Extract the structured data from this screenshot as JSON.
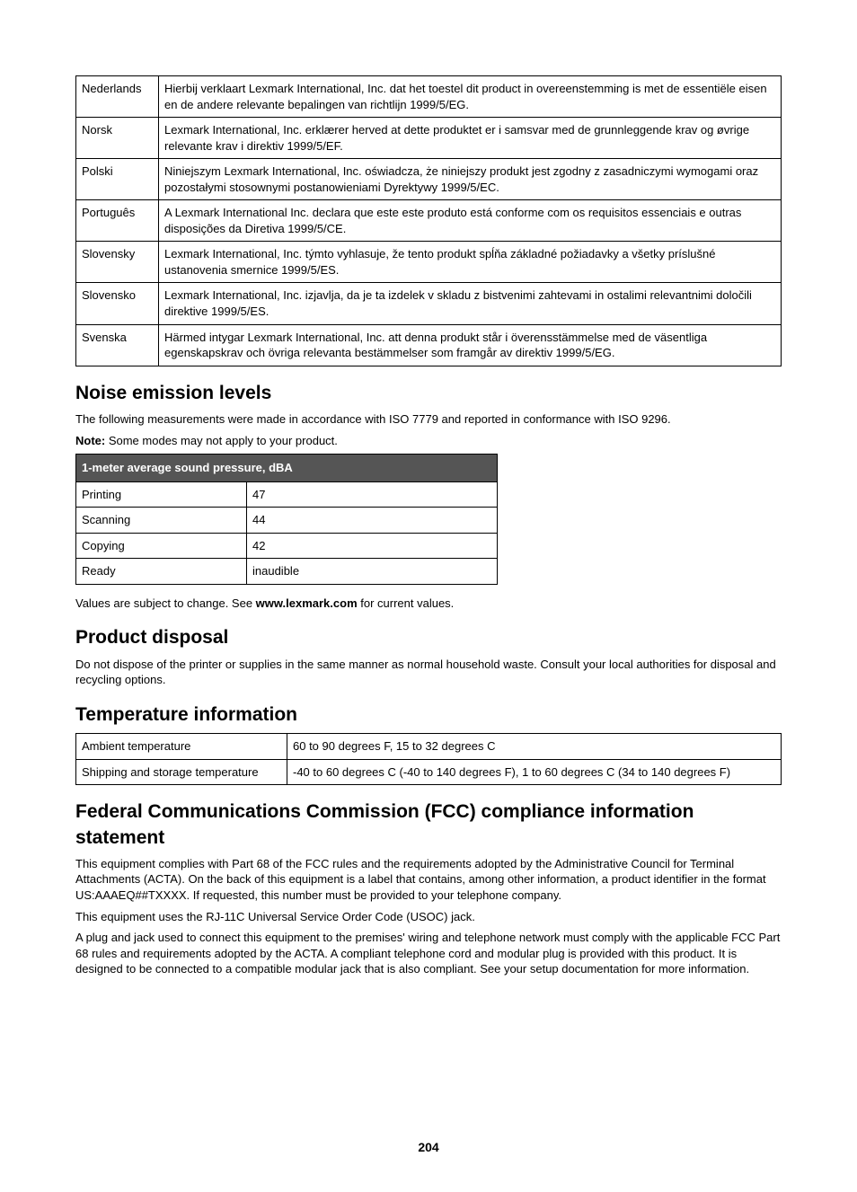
{
  "langTable": [
    {
      "lang": "Nederlands",
      "text": "Hierbij verklaart Lexmark International, Inc. dat het toestel dit product in overeenstemming is met de essentiële eisen en de andere relevante bepalingen van richtlijn 1999/5/EG."
    },
    {
      "lang": "Norsk",
      "text": "Lexmark International, Inc. erklærer herved at dette produktet er i samsvar med de grunnleggende krav og øvrige relevante krav i direktiv 1999/5/EF."
    },
    {
      "lang": "Polski",
      "text": "Niniejszym Lexmark International, Inc. oświadcza, że niniejszy produkt jest zgodny z zasadniczymi wymogami oraz pozostałymi stosownymi postanowieniami Dyrektywy 1999/5/EC."
    },
    {
      "lang": "Português",
      "text": "A Lexmark International Inc. declara que este este produto está conforme com os requisitos essenciais e outras disposições da Diretiva 1999/5/CE."
    },
    {
      "lang": "Slovensky",
      "text": "Lexmark International, Inc. týmto vyhlasuje, že tento produkt spĺňa základné požiadavky a všetky príslušné ustanovenia smernice 1999/5/ES."
    },
    {
      "lang": "Slovensko",
      "text": "Lexmark International, Inc. izjavlja, da je ta izdelek v skladu z bistvenimi zahtevami in ostalimi relevantnimi določili direktive 1999/5/ES."
    },
    {
      "lang": "Svenska",
      "text": "Härmed intygar Lexmark International, Inc. att denna produkt står i överensstämmelse med de väsentliga egenskapskrav och övriga relevanta bestämmelser som framgår av direktiv 1999/5/EG."
    }
  ],
  "noise": {
    "heading": "Noise emission levels",
    "intro": "The following measurements were made in accordance with ISO 7779 and reported in conformance with ISO 9296.",
    "noteLabel": "Note:",
    "noteText": " Some modes may not apply to your product.",
    "tableHeader": "1-meter average sound pressure, dBA",
    "rows": [
      {
        "mode": "Printing",
        "value": "47"
      },
      {
        "mode": "Scanning",
        "value": "44"
      },
      {
        "mode": "Copying",
        "value": "42"
      },
      {
        "mode": "Ready",
        "value": "inaudible"
      }
    ],
    "footerPre": "Values are subject to change. See ",
    "footerBold": "www.lexmark.com",
    "footerPost": " for current values."
  },
  "disposal": {
    "heading": "Product disposal",
    "text": "Do not dispose of the printer or supplies in the same manner as normal household waste. Consult your local authorities for disposal and recycling options."
  },
  "temp": {
    "heading": "Temperature information",
    "rows": [
      {
        "label": "Ambient temperature",
        "value": "60 to 90 degrees F, 15 to 32 degrees C"
      },
      {
        "label": "Shipping and storage temperature",
        "value": "-40 to 60 degrees C (-40 to 140 degrees F), 1 to 60 degrees C (34 to 140 degrees F)"
      }
    ]
  },
  "fcc": {
    "heading": "Federal Communications Commission (FCC) compliance information statement",
    "p1": "This equipment complies with Part 68 of the FCC rules and the requirements adopted by the Administrative Council for Terminal Attachments (ACTA). On the back of this equipment is a label that contains, among other information, a product identifier in the format US:AAAEQ##TXXXX. If requested, this number must be provided to your telephone company.",
    "p2": "This equipment uses the RJ-11C Universal Service Order Code (USOC) jack.",
    "p3": "A plug and jack used to connect this equipment to the premises' wiring and telephone network must comply with the applicable FCC Part 68 rules and requirements adopted by the ACTA. A compliant telephone cord and modular plug is provided with this product. It is designed to be connected to a compatible modular jack that is also compliant. See your setup documentation for more information."
  },
  "pageNumber": "204"
}
